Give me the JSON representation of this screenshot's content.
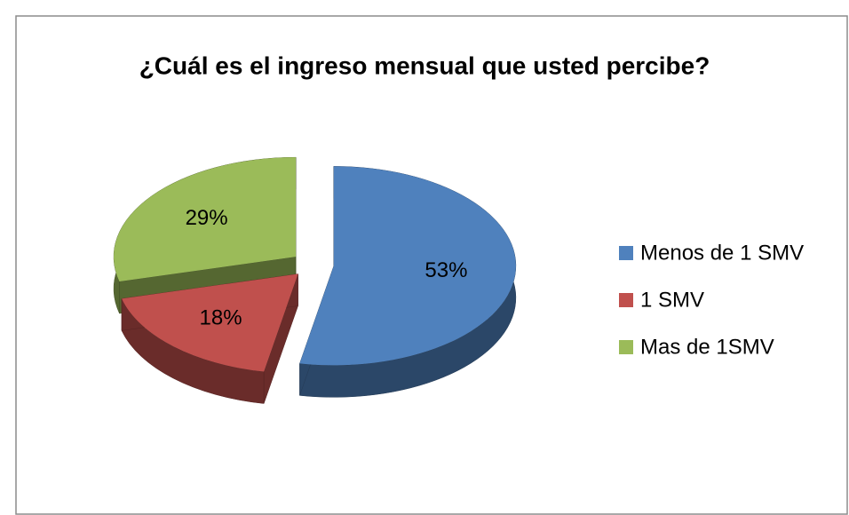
{
  "chart_data": {
    "type": "pie",
    "title": "¿Cuál es el ingreso mensual que usted percibe?",
    "categories": [
      "Menos de 1 SMV",
      "1 SMV",
      "Mas de 1SMV"
    ],
    "values": [
      53,
      18,
      29
    ],
    "value_labels": [
      "53%",
      "18%",
      "29%"
    ],
    "colors": [
      "#4f81bd",
      "#c0504d",
      "#9bbb59"
    ],
    "legend": "right"
  }
}
